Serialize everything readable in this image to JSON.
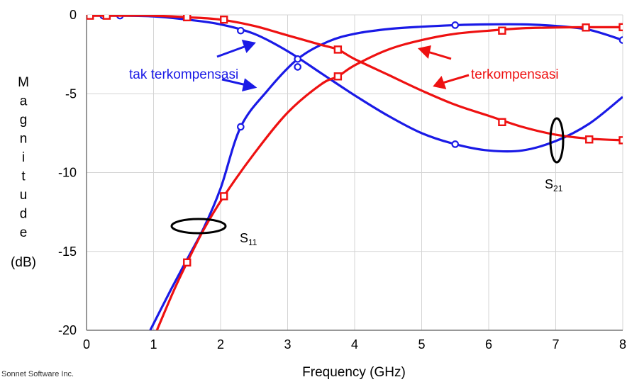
{
  "chart_data": {
    "type": "line",
    "xlabel": "Frequency (GHz)",
    "ylabel_letters": [
      "M",
      "a",
      "g",
      "n",
      "i",
      "t",
      "u",
      "d",
      "e"
    ],
    "ylabel_unit": "(dB)",
    "xlim": [
      0,
      8
    ],
    "ylim": [
      -20,
      0
    ],
    "x_ticks": [
      "0",
      "1",
      "2",
      "3",
      "4",
      "5",
      "6",
      "7",
      "8"
    ],
    "y_ticks": [
      "0",
      "-5",
      "-10",
      "-15",
      "-20"
    ],
    "y_tick_values": [
      0,
      -5,
      -10,
      -15,
      -20
    ],
    "grid": true,
    "credit": "Sonnet Software Inc.",
    "annotations": {
      "uncompensated": "tak terkompensasi",
      "compensated": "terkompensasi",
      "s11_main": "S",
      "s11_sub": "11",
      "s21_main": "S",
      "s21_sub": "21"
    },
    "colors": {
      "uncompensated": "#1a1ae6",
      "compensated": "#ee1111"
    },
    "series": [
      {
        "group": "uncompensated",
        "param": "S21",
        "marker": "circle",
        "x": [
          0,
          0.5,
          1.0,
          1.5,
          2.0,
          2.5,
          3.0,
          3.5,
          4.0,
          4.5,
          5.0,
          5.5,
          6.0,
          6.5,
          7.0,
          7.5,
          8.0
        ],
        "y": [
          -0.05,
          -0.05,
          -0.1,
          -0.3,
          -0.6,
          -1.2,
          -2.3,
          -3.7,
          -5.1,
          -6.4,
          -7.5,
          -8.2,
          -8.6,
          -8.6,
          -8.0,
          -6.9,
          -5.2
        ],
        "markers_x": [
          0.25,
          0.5,
          2.3,
          3.15,
          5.5
        ],
        "markers_y": [
          -0.05,
          -0.05,
          -1.0,
          -3.3,
          -8.2
        ]
      },
      {
        "group": "uncompensated",
        "param": "S11",
        "marker": "circle",
        "x": [
          0.95,
          1.25,
          1.5,
          1.75,
          2.0,
          2.3,
          2.7,
          3.15,
          3.6,
          4.0,
          4.5,
          5.0,
          5.5,
          6.0,
          6.5,
          7.0,
          7.5,
          8.0
        ],
        "y": [
          -20.0,
          -17.5,
          -15.5,
          -13.5,
          -11.0,
          -7.1,
          -4.8,
          -2.8,
          -1.7,
          -1.2,
          -0.9,
          -0.75,
          -0.65,
          -0.6,
          -0.6,
          -0.7,
          -0.95,
          -1.6
        ],
        "markers_x": [
          2.3,
          3.15,
          5.5,
          8.0
        ],
        "markers_y": [
          -7.1,
          -2.8,
          -0.65,
          -1.6
        ]
      },
      {
        "group": "compensated",
        "param": "S21",
        "marker": "square",
        "x": [
          0,
          0.5,
          1.0,
          1.5,
          2.0,
          2.5,
          3.0,
          3.5,
          3.75,
          4.0,
          4.5,
          5.0,
          5.5,
          6.0,
          6.5,
          7.0,
          7.5,
          8.0
        ],
        "y": [
          -0.05,
          -0.05,
          -0.05,
          -0.15,
          -0.3,
          -0.7,
          -1.3,
          -1.9,
          -2.2,
          -2.8,
          -3.8,
          -4.8,
          -5.7,
          -6.4,
          -7.1,
          -7.6,
          -7.85,
          -7.95
        ],
        "markers_x": [
          0.05,
          0.3,
          1.5,
          2.05,
          3.75,
          6.2,
          7.5,
          8.0
        ],
        "markers_y": [
          -0.05,
          -0.05,
          -0.15,
          -0.3,
          -2.2,
          -6.8,
          -7.9,
          -7.95
        ]
      },
      {
        "group": "compensated",
        "param": "S11",
        "marker": "square",
        "x": [
          1.05,
          1.3,
          1.5,
          1.75,
          2.05,
          2.5,
          3.0,
          3.5,
          3.75,
          4.0,
          4.5,
          5.0,
          5.5,
          6.0,
          6.5,
          7.0,
          7.5,
          8.0
        ],
        "y": [
          -20.0,
          -17.5,
          -15.7,
          -13.6,
          -11.5,
          -8.8,
          -6.2,
          -4.4,
          -3.9,
          -3.2,
          -2.2,
          -1.6,
          -1.2,
          -1.0,
          -0.85,
          -0.8,
          -0.78,
          -0.78
        ],
        "markers_x": [
          1.5,
          2.05,
          3.75,
          6.2,
          7.45,
          8.0
        ],
        "markers_y": [
          -15.7,
          -11.5,
          -3.9,
          -1.0,
          -0.8,
          -0.78
        ]
      }
    ]
  }
}
